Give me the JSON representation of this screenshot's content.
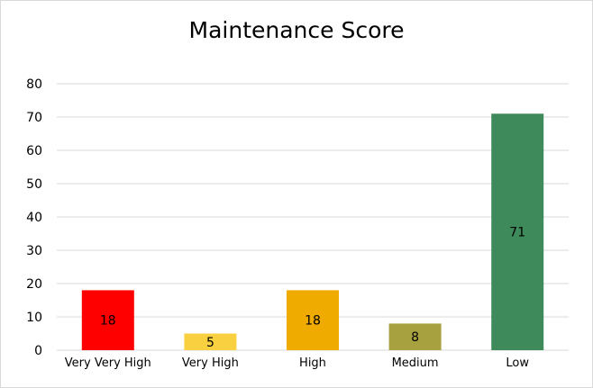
{
  "chart_data": {
    "type": "bar",
    "title": "Maintenance Score",
    "xlabel": "",
    "ylabel": "",
    "categories": [
      "Very Very High",
      "Very High",
      "High",
      "Medium",
      "Low"
    ],
    "values": [
      18,
      5,
      18,
      8,
      71
    ],
    "data_labels": [
      "18",
      "5",
      "18",
      "8",
      "71"
    ],
    "colors": [
      "#ff0000",
      "#f9d03f",
      "#f0ab00",
      "#a8a13f",
      "#3f8a5a"
    ],
    "ylim": [
      0,
      80
    ],
    "yticks": [
      0,
      10,
      20,
      30,
      40,
      50,
      60,
      70,
      80
    ],
    "ytick_labels": [
      "0",
      "10",
      "20",
      "30",
      "40",
      "50",
      "60",
      "70",
      "80"
    ],
    "grid": true,
    "legend": "none"
  }
}
